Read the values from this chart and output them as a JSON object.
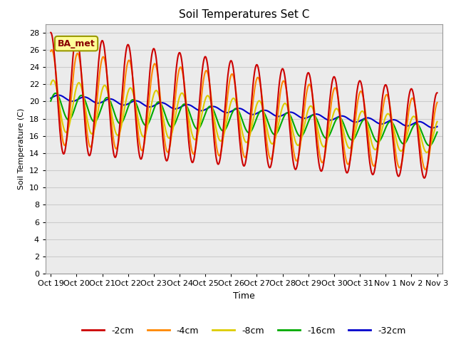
{
  "title": "Soil Temperatures Set C",
  "xlabel": "Time",
  "ylabel": "Soil Temperature (C)",
  "ylim": [
    0,
    29
  ],
  "yticks": [
    0,
    2,
    4,
    6,
    8,
    10,
    12,
    14,
    16,
    18,
    20,
    22,
    24,
    26,
    28
  ],
  "xtick_labels": [
    "Oct 19",
    "Oct 20",
    "Oct 21",
    "Oct 22",
    "Oct 23",
    "Oct 24",
    "Oct 25",
    "Oct 26",
    "Oct 27",
    "Oct 28",
    "Oct 29",
    "Oct 30",
    "Oct 31",
    "Nov 1",
    "Nov 2",
    "Nov 3"
  ],
  "series_colors": [
    "#cc0000",
    "#ff8800",
    "#ddcc00",
    "#00aa00",
    "#0000cc"
  ],
  "series_labels": [
    "-2cm",
    "-4cm",
    "-8cm",
    "-16cm",
    "-32cm"
  ],
  "legend_label": "BA_met",
  "background_color": "#ffffff",
  "grid_color": "#dddddd",
  "n_points": 1440
}
